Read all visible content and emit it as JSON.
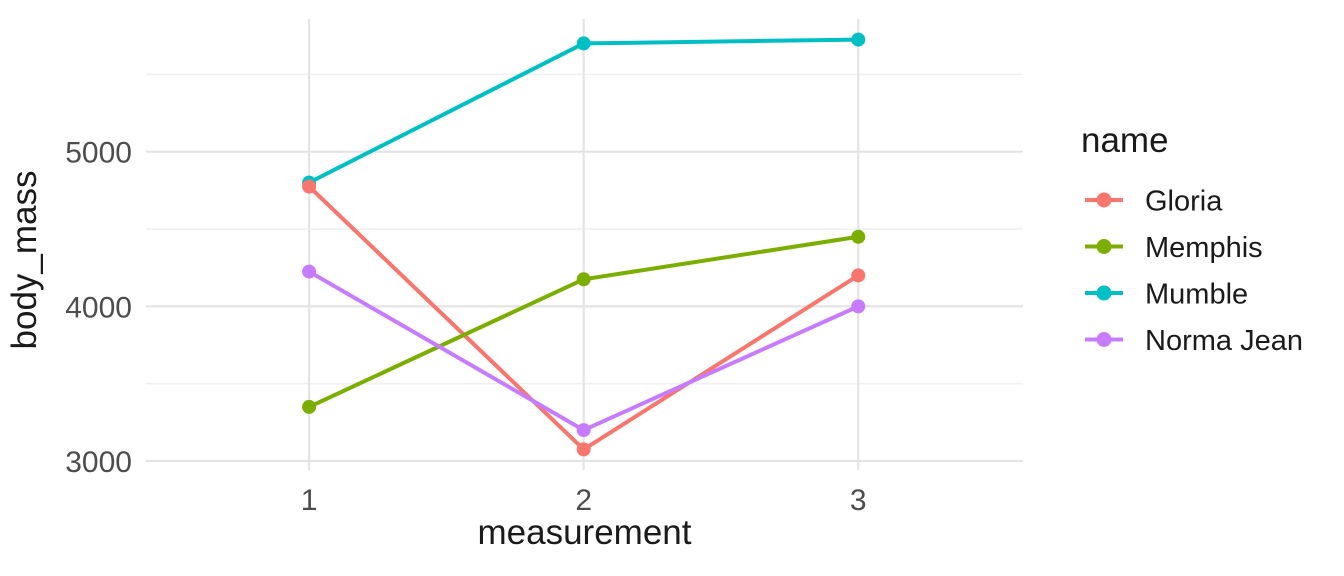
{
  "chart_data": {
    "type": "line",
    "title": "",
    "xlabel": "measurement",
    "ylabel": "body_mass",
    "legend_title": "name",
    "legend_position": "right",
    "x": [
      1,
      2,
      3
    ],
    "series": [
      {
        "name": "Gloria",
        "color": "#F8766D",
        "values": [
          4775,
          3075,
          4200
        ]
      },
      {
        "name": "Memphis",
        "color": "#7CAE00",
        "values": [
          3350,
          4175,
          4450
        ]
      },
      {
        "name": "Mumble",
        "color": "#00BFC4",
        "values": [
          4800,
          5700,
          5725
        ]
      },
      {
        "name": "Norma Jean",
        "color": "#C77CFF",
        "values": [
          4225,
          3200,
          4000
        ]
      }
    ],
    "xticks": [
      1,
      2,
      3
    ],
    "yticks": [
      3000,
      4000,
      5000
    ],
    "yticks_minor": [
      3500,
      4500,
      5500
    ],
    "xlim": [
      0.406,
      3.6
    ],
    "ylim": [
      2942,
      5858
    ],
    "grid": true,
    "point_radius": 7,
    "line_width": 4,
    "colors": {
      "background": "#FFFFFF",
      "grid_major": "#E4E4E4",
      "grid_minor": "#F0F0F0",
      "tick_text": "#4D4D4D",
      "title_text": "#1A1A1A"
    }
  }
}
